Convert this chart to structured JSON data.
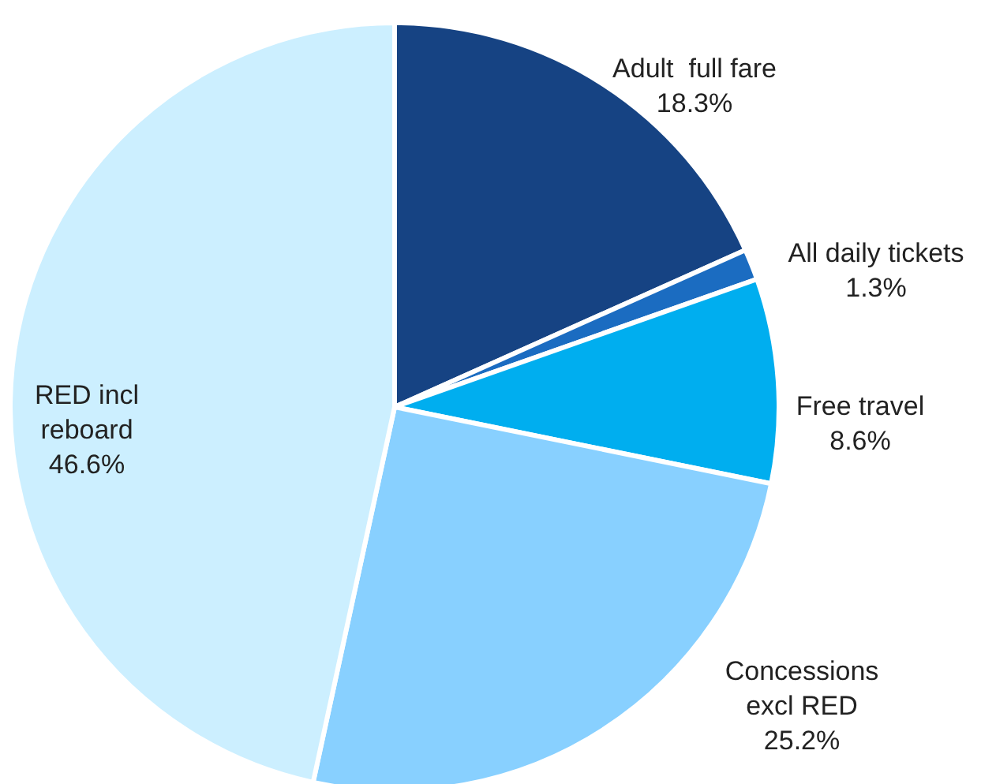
{
  "chart_data": {
    "type": "pie",
    "categories": [
      "Adult  full fare",
      "All daily tickets",
      "Free travel",
      "Concessions excl RED",
      "RED incl reboard"
    ],
    "values": [
      18.3,
      1.3,
      8.6,
      25.2,
      46.6
    ],
    "value_labels": [
      "18.3%",
      "1.3%",
      "8.6%",
      "25.2%",
      "46.6%"
    ],
    "colors": [
      "#164383",
      "#1b6cc1",
      "#00aeef",
      "#88d0ff",
      "#ccefff"
    ]
  }
}
